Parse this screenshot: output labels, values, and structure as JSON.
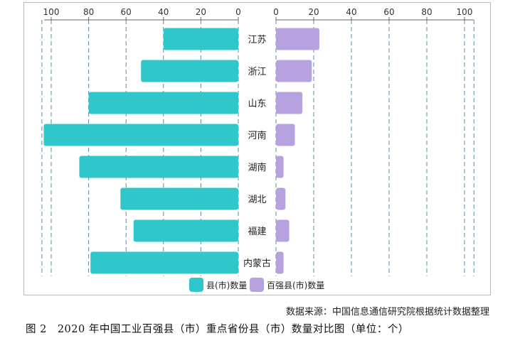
{
  "chart_data": {
    "type": "bar",
    "orientation": "horizontal-butterfly",
    "categories": [
      "江苏",
      "浙江",
      "山东",
      "河南",
      "湖南",
      "湖北",
      "福建",
      "内蒙古"
    ],
    "series": [
      {
        "name": "县(市)数量",
        "values": [
          40,
          52,
          80,
          104,
          85,
          63,
          56,
          79
        ],
        "color": "#2fc7c9",
        "side": "left"
      },
      {
        "name": "百强县(市)数量",
        "values": [
          23,
          19,
          14,
          10,
          4,
          5,
          7,
          4
        ],
        "color": "#b6a2de",
        "side": "right"
      }
    ],
    "left_axis": {
      "ticks": [
        100,
        80,
        60,
        40,
        20,
        0
      ],
      "range": [
        0,
        105
      ],
      "reversed": true
    },
    "right_axis": {
      "ticks": [
        0,
        20,
        40,
        60,
        80,
        100
      ],
      "range": [
        0,
        105
      ]
    },
    "grid": true,
    "legend_position": "bottom-center"
  },
  "source": "数据来源：中国信息通信研究院根据统计数据整理",
  "caption": "图 2　2020 年中国工业百强县（市）重点省份县（市）数量对比图（单位：个）"
}
